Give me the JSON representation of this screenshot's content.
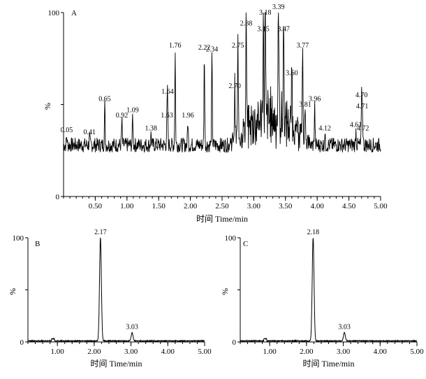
{
  "chart_data": [
    {
      "panel": "A",
      "type": "line",
      "xlabel": "时间  Time/min",
      "ylabel": "%",
      "xlim": [
        0,
        5.0
      ],
      "ylim": [
        0,
        100
      ],
      "x_ticks": [
        "0.50",
        "1.00",
        "1.50",
        "2.00",
        "2.50",
        "3.00",
        "3.50",
        "4.00",
        "4.50",
        "5.00"
      ],
      "x_tick_values": [
        0.5,
        1.0,
        1.5,
        2.0,
        2.5,
        3.0,
        3.5,
        4.0,
        4.5,
        5.0
      ],
      "y_ticks": [
        "0",
        "100"
      ],
      "y_tick_values": [
        0,
        100
      ],
      "baseline": 28,
      "peaks": [
        {
          "label": "0.05",
          "x": 0.05,
          "y": 33
        },
        {
          "label": "0.41",
          "x": 0.41,
          "y": 32
        },
        {
          "label": "0.65",
          "x": 0.65,
          "y": 50
        },
        {
          "label": "0.92",
          "x": 0.92,
          "y": 41
        },
        {
          "label": "1.09",
          "x": 1.09,
          "y": 44
        },
        {
          "label": "1.38",
          "x": 1.38,
          "y": 34
        },
        {
          "label": "1.63",
          "x": 1.63,
          "y": 41
        },
        {
          "label": "1.64",
          "x": 1.64,
          "y": 54
        },
        {
          "label": "1.76",
          "x": 1.76,
          "y": 79
        },
        {
          "label": "1.96",
          "x": 1.96,
          "y": 41
        },
        {
          "label": "2.22",
          "x": 2.22,
          "y": 78
        },
        {
          "label": "2.34",
          "x": 2.34,
          "y": 77
        },
        {
          "label": "2.70",
          "x": 2.7,
          "y": 57
        },
        {
          "label": "2.75",
          "x": 2.75,
          "y": 79
        },
        {
          "label": "2.88",
          "x": 2.88,
          "y": 91
        },
        {
          "label": "3.15",
          "x": 3.15,
          "y": 88
        },
        {
          "label": "3.18",
          "x": 3.18,
          "y": 97
        },
        {
          "label": "3.39",
          "x": 3.39,
          "y": 100
        },
        {
          "label": "3.47",
          "x": 3.47,
          "y": 88
        },
        {
          "label": "3.60",
          "x": 3.6,
          "y": 64
        },
        {
          "label": "3.77",
          "x": 3.77,
          "y": 79
        },
        {
          "label": "3.81",
          "x": 3.81,
          "y": 47
        },
        {
          "label": "3.96",
          "x": 3.96,
          "y": 50
        },
        {
          "label": "4.12",
          "x": 4.12,
          "y": 34
        },
        {
          "label": "4.61",
          "x": 4.61,
          "y": 36
        },
        {
          "label": "4.70",
          "x": 4.7,
          "y": 52
        },
        {
          "label": "4.71",
          "x": 4.71,
          "y": 46
        },
        {
          "label": "4.72",
          "x": 4.72,
          "y": 34
        }
      ]
    },
    {
      "panel": "B",
      "type": "line",
      "xlabel": "时间  Time/min",
      "ylabel": "%",
      "xlim": [
        0.2,
        5.0
      ],
      "ylim": [
        0,
        100
      ],
      "x_ticks": [
        "1.00",
        "2.00",
        "3.00",
        "4.00",
        "5.00"
      ],
      "x_tick_values": [
        1.0,
        2.0,
        3.0,
        4.0,
        5.0
      ],
      "y_ticks": [
        "0",
        "100"
      ],
      "y_tick_values": [
        0,
        100
      ],
      "baseline": 1,
      "peaks": [
        {
          "label": "2.17",
          "x": 2.17,
          "y": 100
        },
        {
          "label": "3.03",
          "x": 3.03,
          "y": 9
        }
      ]
    },
    {
      "panel": "C",
      "type": "line",
      "xlabel": "时间  Time/min",
      "ylabel": "%",
      "xlim": [
        0.2,
        5.0
      ],
      "ylim": [
        0,
        100
      ],
      "x_ticks": [
        "1.00",
        "2.00",
        "3.00",
        "4.00",
        "5.00"
      ],
      "x_tick_values": [
        1.0,
        2.0,
        3.0,
        4.0,
        5.0
      ],
      "y_ticks": [
        "0",
        "100"
      ],
      "y_tick_values": [
        0,
        100
      ],
      "baseline": 1,
      "peaks": [
        {
          "label": "2.18",
          "x": 2.18,
          "y": 100
        },
        {
          "label": "3.03",
          "x": 3.03,
          "y": 9
        }
      ]
    }
  ]
}
